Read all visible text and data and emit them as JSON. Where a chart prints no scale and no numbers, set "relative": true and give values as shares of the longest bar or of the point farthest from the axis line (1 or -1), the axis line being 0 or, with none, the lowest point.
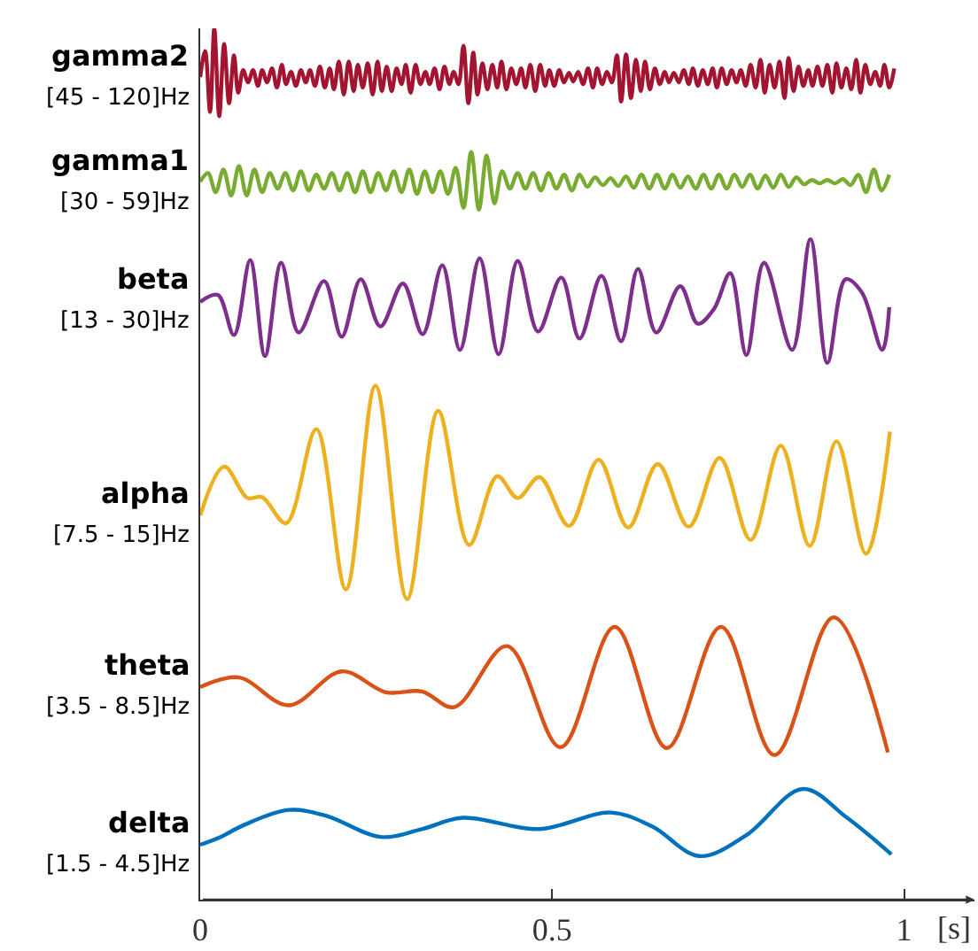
{
  "chart_data": {
    "type": "line",
    "relative": true,
    "xlabel": "[s]",
    "xlim": [
      0,
      1.1
    ],
    "xticks": [
      0,
      0.5,
      1
    ],
    "annotations": [
      "[45 - 120]Hz",
      "[30 - 59]Hz",
      "[13 - 30]Hz",
      "[7.5 - 15]Hz",
      "[3.5 - 8.5]Hz",
      "[1.5 - 4.5]Hz"
    ],
    "series": [
      {
        "name": "gamma2",
        "color": "#a2142f",
        "x": [
          0,
          0.007,
          0.014,
          0.02,
          0.027,
          0.034,
          0.041,
          0.048,
          0.054,
          0.061,
          0.068,
          0.075,
          0.082,
          0.088,
          0.095,
          0.102,
          0.109,
          0.116,
          0.122,
          0.129,
          0.136,
          0.143,
          0.15,
          0.156,
          0.163,
          0.17,
          0.177,
          0.184,
          0.19,
          0.197,
          0.204,
          0.211,
          0.218,
          0.224,
          0.231,
          0.238,
          0.245,
          0.252,
          0.258,
          0.265,
          0.272,
          0.279,
          0.286,
          0.292,
          0.299,
          0.306,
          0.313,
          0.32,
          0.326,
          0.333,
          0.34,
          0.347,
          0.354,
          0.36,
          0.367,
          0.374,
          0.381,
          0.388,
          0.394,
          0.401,
          0.408,
          0.415,
          0.422,
          0.428,
          0.435,
          0.442,
          0.449,
          0.456,
          0.462,
          0.469,
          0.476,
          0.483,
          0.49,
          0.496,
          0.503,
          0.51,
          0.517,
          0.524,
          0.53,
          0.537,
          0.544,
          0.551,
          0.558,
          0.564,
          0.571,
          0.578,
          0.585,
          0.592,
          0.598,
          0.605,
          0.612,
          0.619,
          0.626,
          0.632,
          0.639,
          0.646,
          0.653,
          0.66,
          0.666,
          0.673,
          0.68,
          0.687,
          0.694,
          0.7,
          0.707,
          0.714,
          0.721,
          0.728,
          0.734,
          0.741,
          0.748,
          0.755,
          0.762,
          0.768,
          0.775,
          0.782,
          0.789,
          0.796,
          0.802,
          0.809,
          0.816,
          0.823,
          0.83,
          0.836,
          0.843,
          0.85,
          0.857,
          0.864,
          0.87,
          0.877,
          0.884,
          0.891,
          0.898,
          0.904,
          0.911,
          0.918,
          0.925,
          0.932,
          0.938,
          0.945,
          0.952,
          0.959,
          0.966,
          0.972,
          0.979,
          0.986
        ],
        "values": [
          0.944,
          0.974,
          0.904,
          1.0,
          0.899,
          0.982,
          0.914,
          0.969,
          0.926,
          0.952,
          0.938,
          0.952,
          0.934,
          0.952,
          0.938,
          0.954,
          0.932,
          0.958,
          0.936,
          0.95,
          0.934,
          0.952,
          0.938,
          0.952,
          0.934,
          0.956,
          0.932,
          0.954,
          0.93,
          0.962,
          0.924,
          0.962,
          0.928,
          0.958,
          0.932,
          0.96,
          0.924,
          0.962,
          0.928,
          0.956,
          0.928,
          0.954,
          0.936,
          0.958,
          0.926,
          0.958,
          0.936,
          0.95,
          0.936,
          0.954,
          0.93,
          0.956,
          0.936,
          0.95,
          0.936,
          0.98,
          0.914,
          0.972,
          0.924,
          0.96,
          0.93,
          0.958,
          0.932,
          0.962,
          0.93,
          0.954,
          0.936,
          0.954,
          0.932,
          0.958,
          0.928,
          0.958,
          0.934,
          0.952,
          0.934,
          0.952,
          0.938,
          0.949,
          0.939,
          0.95,
          0.936,
          0.954,
          0.932,
          0.954,
          0.936,
          0.95,
          0.938,
          0.969,
          0.916,
          0.97,
          0.92,
          0.964,
          0.928,
          0.962,
          0.93,
          0.954,
          0.936,
          0.95,
          0.938,
          0.949,
          0.938,
          0.952,
          0.936,
          0.954,
          0.934,
          0.952,
          0.936,
          0.954,
          0.932,
          0.954,
          0.936,
          0.952,
          0.938,
          0.952,
          0.934,
          0.958,
          0.932,
          0.964,
          0.926,
          0.958,
          0.932,
          0.962,
          0.92,
          0.966,
          0.928,
          0.956,
          0.934,
          0.952,
          0.934,
          0.956,
          0.934,
          0.958,
          0.926,
          0.96,
          0.932,
          0.954,
          0.93,
          0.964,
          0.926,
          0.958,
          0.936,
          0.95,
          0.934,
          0.958,
          0.932,
          0.954
        ]
      },
      {
        "name": "gamma1",
        "color": "#77ac30",
        "x": [
          0,
          0.011,
          0.022,
          0.033,
          0.044,
          0.055,
          0.066,
          0.077,
          0.088,
          0.099,
          0.11,
          0.121,
          0.132,
          0.143,
          0.154,
          0.165,
          0.176,
          0.187,
          0.198,
          0.209,
          0.22,
          0.231,
          0.242,
          0.253,
          0.264,
          0.275,
          0.286,
          0.297,
          0.308,
          0.319,
          0.33,
          0.341,
          0.352,
          0.363,
          0.374,
          0.385,
          0.396,
          0.407,
          0.418,
          0.429,
          0.44,
          0.451,
          0.462,
          0.473,
          0.484,
          0.495,
          0.506,
          0.517,
          0.528,
          0.539,
          0.55,
          0.561,
          0.572,
          0.583,
          0.594,
          0.605,
          0.616,
          0.627,
          0.638,
          0.649,
          0.66,
          0.671,
          0.682,
          0.693,
          0.704,
          0.715,
          0.726,
          0.737,
          0.748,
          0.759,
          0.77,
          0.781,
          0.792,
          0.803,
          0.814,
          0.825,
          0.836,
          0.847,
          0.858,
          0.869,
          0.88,
          0.891,
          0.902,
          0.913,
          0.924,
          0.935,
          0.946,
          0.957,
          0.968,
          0.979
        ],
        "values": [
          0.824,
          0.834,
          0.812,
          0.838,
          0.808,
          0.842,
          0.808,
          0.838,
          0.812,
          0.834,
          0.816,
          0.834,
          0.814,
          0.836,
          0.814,
          0.832,
          0.816,
          0.834,
          0.814,
          0.834,
          0.812,
          0.836,
          0.812,
          0.834,
          0.814,
          0.836,
          0.812,
          0.838,
          0.81,
          0.836,
          0.812,
          0.836,
          0.81,
          0.84,
          0.794,
          0.858,
          0.792,
          0.854,
          0.799,
          0.836,
          0.816,
          0.834,
          0.816,
          0.834,
          0.814,
          0.834,
          0.816,
          0.832,
          0.814,
          0.832,
          0.818,
          0.829,
          0.82,
          0.828,
          0.819,
          0.83,
          0.817,
          0.832,
          0.816,
          0.832,
          0.816,
          0.832,
          0.817,
          0.83,
          0.816,
          0.832,
          0.816,
          0.832,
          0.816,
          0.832,
          0.818,
          0.832,
          0.816,
          0.831,
          0.817,
          0.832,
          0.818,
          0.829,
          0.821,
          0.826,
          0.822,
          0.826,
          0.822,
          0.827,
          0.82,
          0.832,
          0.812,
          0.838,
          0.814,
          0.832
        ]
      },
      {
        "name": "beta",
        "color": "#7e2f8e",
        "x": [
          0,
          0.025,
          0.048,
          0.071,
          0.092,
          0.115,
          0.14,
          0.176,
          0.201,
          0.228,
          0.256,
          0.288,
          0.316,
          0.344,
          0.369,
          0.397,
          0.424,
          0.451,
          0.48,
          0.513,
          0.539,
          0.57,
          0.598,
          0.622,
          0.648,
          0.682,
          0.707,
          0.73,
          0.753,
          0.776,
          0.801,
          0.841,
          0.867,
          0.891,
          0.917,
          0.94,
          0.969,
          0.979
        ],
        "values": [
          0.686,
          0.694,
          0.648,
          0.734,
          0.624,
          0.731,
          0.651,
          0.71,
          0.646,
          0.712,
          0.658,
          0.707,
          0.649,
          0.728,
          0.631,
          0.736,
          0.626,
          0.733,
          0.652,
          0.714,
          0.644,
          0.716,
          0.641,
          0.724,
          0.651,
          0.704,
          0.661,
          0.678,
          0.719,
          0.625,
          0.731,
          0.631,
          0.758,
          0.616,
          0.712,
          0.697,
          0.631,
          0.68
        ]
      },
      {
        "name": "alpha",
        "color": "#edb120",
        "x": [
          0,
          0.034,
          0.067,
          0.088,
          0.122,
          0.165,
          0.207,
          0.249,
          0.294,
          0.338,
          0.382,
          0.422,
          0.451,
          0.482,
          0.524,
          0.566,
          0.608,
          0.65,
          0.694,
          0.738,
          0.782,
          0.825,
          0.866,
          0.904,
          0.946,
          0.98
        ],
        "values": [
          0.441,
          0.497,
          0.461,
          0.462,
          0.432,
          0.54,
          0.356,
          0.59,
          0.345,
          0.561,
          0.407,
          0.486,
          0.461,
          0.485,
          0.429,
          0.505,
          0.427,
          0.5,
          0.428,
          0.507,
          0.413,
          0.521,
          0.406,
          0.526,
          0.397,
          0.537
        ]
      },
      {
        "name": "theta",
        "color": "#d95319",
        "x": [
          0,
          0.055,
          0.126,
          0.201,
          0.264,
          0.315,
          0.361,
          0.436,
          0.512,
          0.589,
          0.663,
          0.74,
          0.816,
          0.9,
          0.977
        ],
        "values": [
          0.244,
          0.255,
          0.223,
          0.262,
          0.238,
          0.239,
          0.221,
          0.291,
          0.175,
          0.313,
          0.174,
          0.313,
          0.166,
          0.324,
          0.169
        ]
      },
      {
        "name": "delta",
        "color": "#0072bd",
        "x": [
          0,
          0.029,
          0.063,
          0.126,
          0.18,
          0.256,
          0.315,
          0.373,
          0.482,
          0.583,
          0.642,
          0.709,
          0.776,
          0.856,
          0.919,
          0.982
        ],
        "values": [
          0.063,
          0.072,
          0.086,
          0.103,
          0.096,
          0.072,
          0.081,
          0.094,
          0.081,
          0.1,
          0.084,
          0.05,
          0.074,
          0.127,
          0.094,
          0.052
        ]
      }
    ]
  }
}
